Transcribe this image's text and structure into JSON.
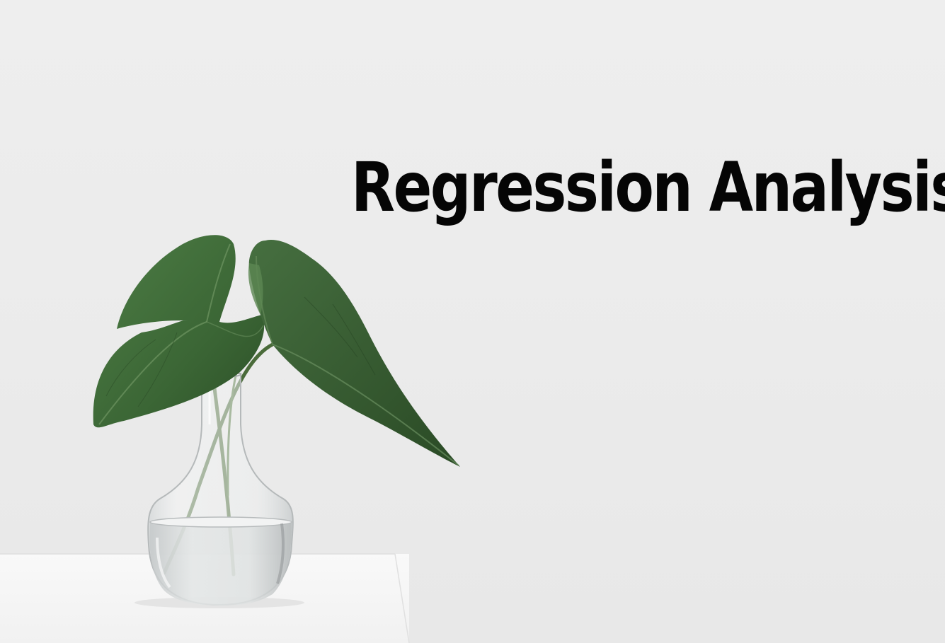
{
  "title": "Regression Analysis",
  "colors": {
    "wall": "#ececec",
    "table": "#f7f7f7",
    "leaf": "#3f6b3a",
    "leaf_dark": "#2d5028",
    "text": "#050505"
  },
  "illustration": {
    "subject": "plant-in-glass-vase-icon"
  }
}
